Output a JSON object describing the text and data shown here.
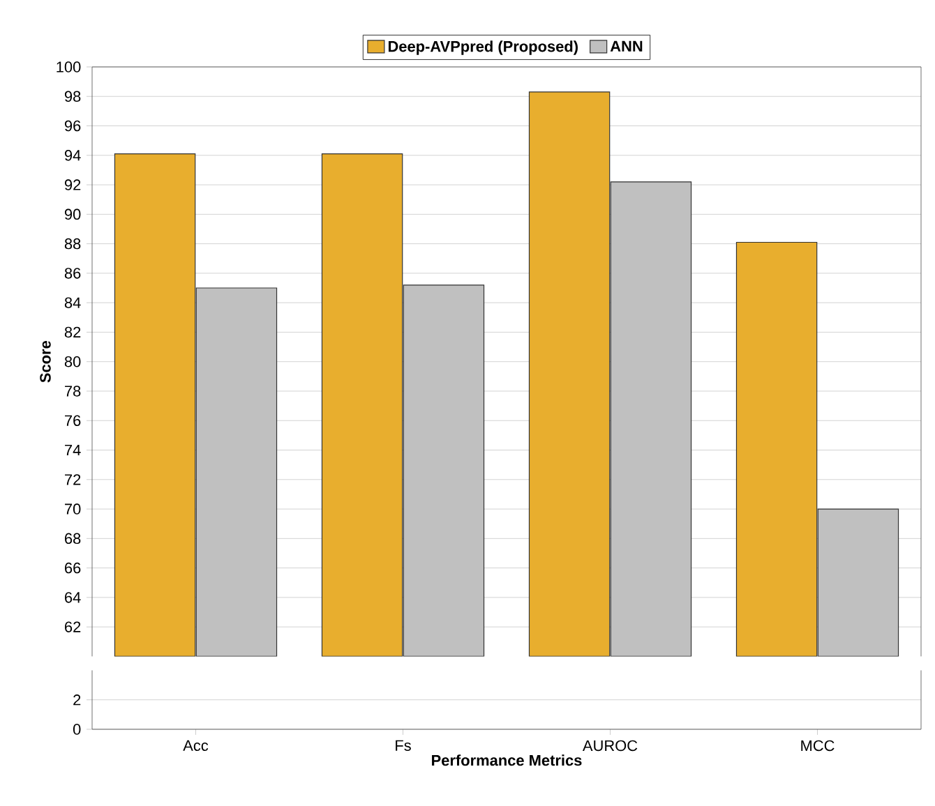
{
  "chart_data": [
    {
      "type": "bar",
      "categories": [
        null,
        null,
        null,
        null
      ],
      "series": [
        {
          "name": "Deep-AVPpred (Proposed)",
          "color": "#e8ae2e",
          "values": [
            94.1,
            94.1,
            98.3,
            88.1
          ]
        },
        {
          "name": "ANN",
          "color": "#c0c0c0",
          "values": [
            85.0,
            85.2,
            92.2,
            70.0
          ]
        }
      ],
      "ylim": [
        60,
        100
      ],
      "yticks": [
        62,
        64,
        66,
        68,
        70,
        72,
        74,
        76,
        78,
        80,
        82,
        84,
        86,
        88,
        90,
        92,
        94,
        96,
        98,
        100
      ],
      "grid": "y",
      "legend": "top",
      "tick_labels": "y",
      "ylabel": "Score"
    },
    {
      "type": "bar",
      "xlabel": "Performance Metrics",
      "categories": [
        "Acc",
        "Fs",
        "AUROC",
        "MCC"
      ],
      "ylim": [
        0,
        4
      ],
      "yticks": [
        0,
        2
      ],
      "grid": "y"
    }
  ]
}
